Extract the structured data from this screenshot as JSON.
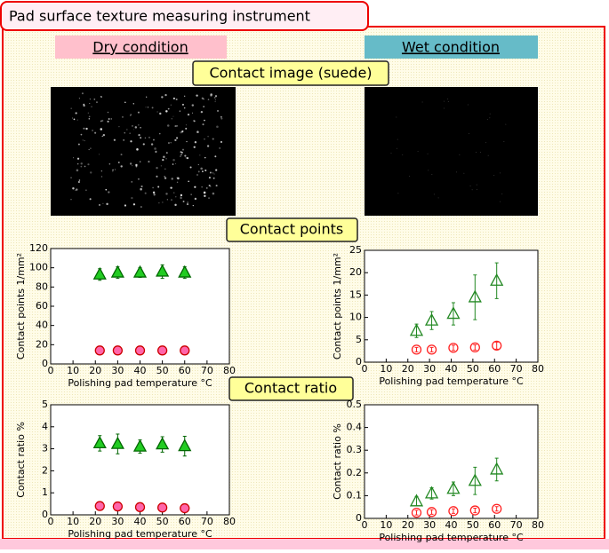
{
  "header": "Pad surface texture measuring instrument",
  "dry_label": "Dry condition",
  "wet_label": "Wet condition",
  "image_label": "Contact image (suede)",
  "points_label": "Contact points",
  "ratio_label": "Contact ratio",
  "chart_data": [
    {
      "type": "scatter",
      "xlabel": "Polishing pad temperature °C",
      "ylabel": "Contact points 1/mm²",
      "x": [
        22,
        30,
        40,
        50,
        60
      ],
      "xlim": [
        0,
        80
      ],
      "xticks": [
        0,
        10,
        20,
        30,
        40,
        50,
        60,
        70,
        80
      ],
      "ylim": [
        0,
        120
      ],
      "yticks": [
        0,
        20,
        40,
        60,
        80,
        100,
        120
      ],
      "series": [
        {
          "marker": "triangle",
          "filled": true,
          "color": "#22cc22",
          "edge": "#006600",
          "values": [
            93,
            95,
            95,
            96,
            95
          ],
          "errors": [
            6,
            6,
            5,
            7,
            6
          ]
        },
        {
          "marker": "circle",
          "filled": true,
          "color": "#ff66aa",
          "edge": "#cc0000",
          "values": [
            14,
            14,
            14,
            14,
            14
          ],
          "errors": [
            3,
            3,
            3,
            3,
            3
          ]
        }
      ]
    },
    {
      "type": "scatter",
      "xlabel": "Polishing pad temperature °C",
      "ylabel": "Contact points 1/mm²",
      "x": [
        24,
        31,
        41,
        51,
        61
      ],
      "xlim": [
        0,
        80
      ],
      "xticks": [
        0,
        10,
        20,
        30,
        40,
        50,
        60,
        70,
        80
      ],
      "ylim": [
        0,
        25
      ],
      "yticks": [
        0,
        5,
        10,
        15,
        20,
        25
      ],
      "series": [
        {
          "marker": "triangle",
          "filled": false,
          "color": "#228822",
          "edge": "#228822",
          "values": [
            7,
            9.3,
            10.8,
            14.5,
            18.2
          ],
          "errors": [
            1.5,
            2,
            2.5,
            5,
            4
          ]
        },
        {
          "marker": "circle",
          "filled": false,
          "color": "#ff2222",
          "edge": "#ff2222",
          "values": [
            2.8,
            2.8,
            3.2,
            3.3,
            3.7
          ],
          "errors": [
            0.5,
            0.5,
            0.6,
            0.6,
            0.8
          ]
        }
      ]
    },
    {
      "type": "scatter",
      "xlabel": "Polishing pad temperature °C",
      "ylabel": "Contact ratio %",
      "x": [
        22,
        30,
        40,
        50,
        60
      ],
      "xlim": [
        0,
        80
      ],
      "xticks": [
        0,
        10,
        20,
        30,
        40,
        50,
        60,
        70,
        80
      ],
      "ylim": [
        0,
        5
      ],
      "yticks": [
        0,
        1,
        2,
        3,
        4,
        5
      ],
      "series": [
        {
          "marker": "triangle",
          "filled": true,
          "color": "#22cc22",
          "edge": "#006600",
          "values": [
            3.25,
            3.22,
            3.1,
            3.2,
            3.12
          ],
          "errors": [
            0.35,
            0.45,
            0.3,
            0.35,
            0.45
          ]
        },
        {
          "marker": "circle",
          "filled": true,
          "color": "#ff66aa",
          "edge": "#cc0000",
          "values": [
            0.4,
            0.38,
            0.35,
            0.33,
            0.3
          ],
          "errors": [
            0.1,
            0.1,
            0.1,
            0.1,
            0.1
          ]
        }
      ]
    },
    {
      "type": "scatter",
      "xlabel": "Polishing pad temperature °C",
      "ylabel": "Contact ratio %",
      "x": [
        24,
        31,
        41,
        51,
        61
      ],
      "xlim": [
        0,
        80
      ],
      "xticks": [
        0,
        10,
        20,
        30,
        40,
        50,
        60,
        70,
        80
      ],
      "ylim": [
        0,
        0.5
      ],
      "yticks": [
        0,
        0.1,
        0.2,
        0.3,
        0.4,
        0.5
      ],
      "series": [
        {
          "marker": "triangle",
          "filled": false,
          "color": "#228822",
          "edge": "#228822",
          "values": [
            0.075,
            0.11,
            0.13,
            0.165,
            0.215
          ],
          "errors": [
            0.02,
            0.025,
            0.03,
            0.06,
            0.05
          ]
        },
        {
          "marker": "circle",
          "filled": false,
          "color": "#ff2222",
          "edge": "#ff2222",
          "values": [
            0.025,
            0.028,
            0.032,
            0.035,
            0.042
          ],
          "errors": [
            0.01,
            0.01,
            0.01,
            0.01,
            0.01
          ]
        }
      ]
    }
  ]
}
